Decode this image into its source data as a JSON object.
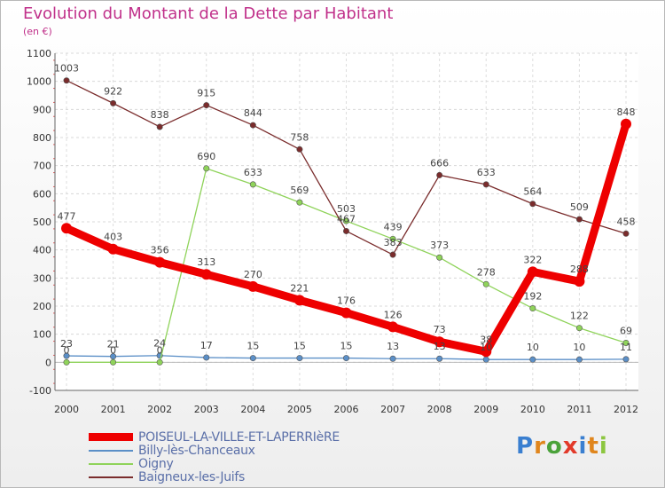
{
  "page": {
    "title": "Evolution du Montant de la Dette par Habitant",
    "unit": "(en €)",
    "logo": "Proxiti"
  },
  "chart_data": {
    "type": "line",
    "title": "Evolution du Montant de la Dette par Habitant",
    "ylabel": "(en €)",
    "ylim": [
      -100,
      1100
    ],
    "ytick_step": 100,
    "grid": true,
    "legend_position": "bottom-left",
    "x": [
      "2000",
      "2001",
      "2002",
      "2003",
      "2004",
      "2005",
      "2006",
      "2007",
      "2008",
      "2009",
      "2010",
      "2011",
      "2012"
    ],
    "series": [
      {
        "name": "POISEUL-LA-VILLE-ET-LAPERRIèRE",
        "color": "#ee0000",
        "emphasis": true,
        "values": [
          477,
          403,
          356,
          313,
          270,
          221,
          176,
          126,
          73,
          38,
          322,
          288,
          848
        ],
        "labels": [
          "477",
          "403",
          "356",
          "313",
          "270",
          "221",
          "176",
          "126",
          "73",
          "38",
          "322",
          "288",
          "848"
        ]
      },
      {
        "name": "Billy-lès-Chanceaux",
        "color": "#5b8fc7",
        "emphasis": false,
        "values": [
          23,
          21,
          24,
          17,
          15,
          15,
          15,
          13,
          13,
          10,
          10,
          10,
          11
        ],
        "labels": [
          "23",
          "21",
          "24",
          "17",
          "15",
          "15",
          "15",
          "13",
          "13",
          "10",
          "10",
          "10",
          "11"
        ]
      },
      {
        "name": "Oigny",
        "color": "#8fd35a",
        "emphasis": false,
        "values": [
          0,
          0,
          0,
          690,
          633,
          569,
          503,
          439,
          373,
          278,
          192,
          122,
          69
        ],
        "labels": [
          "0",
          "0",
          "0",
          "690",
          "633",
          "569",
          "503",
          "439",
          "373",
          "278",
          "192",
          "122",
          "69"
        ]
      },
      {
        "name": "Baigneux-les-Juifs",
        "color": "#7a2c2c",
        "emphasis": false,
        "values": [
          1003,
          922,
          838,
          915,
          844,
          758,
          467,
          383,
          666,
          633,
          564,
          509,
          458
        ],
        "labels": [
          "1003",
          "922",
          "838",
          "915",
          "844",
          "758",
          "467",
          "383",
          "666",
          "633",
          "564",
          "509",
          "458"
        ]
      }
    ]
  }
}
